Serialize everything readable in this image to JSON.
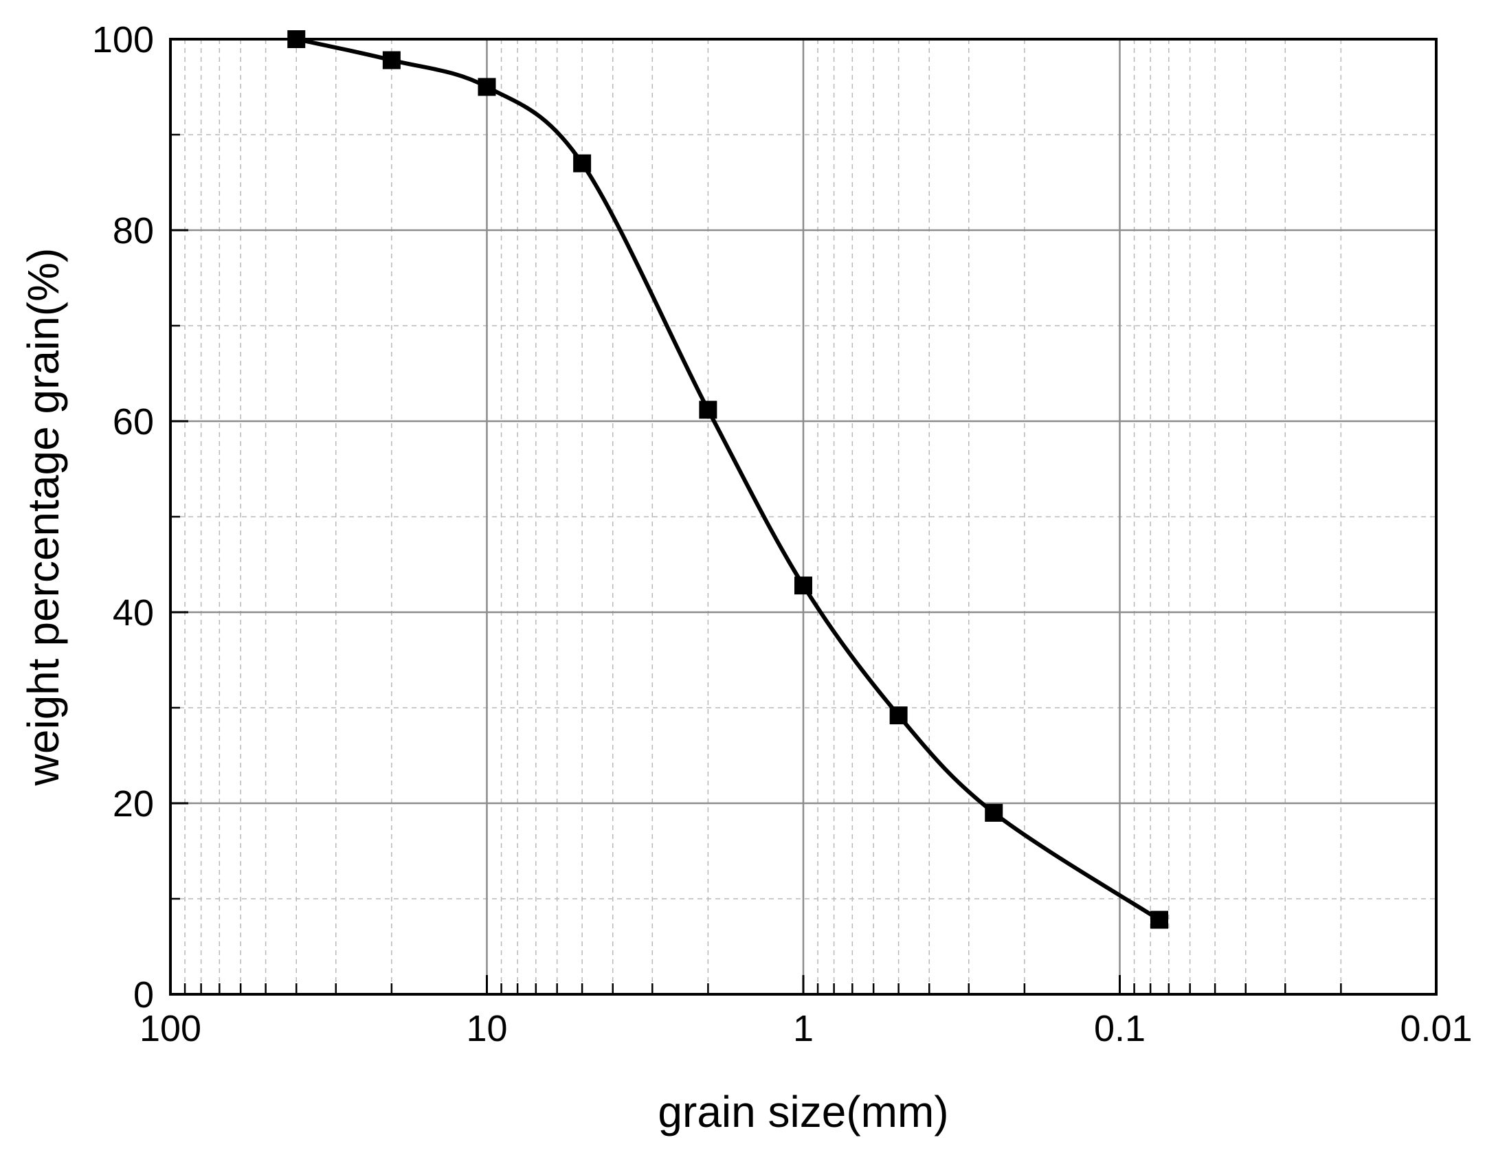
{
  "chart_data": {
    "type": "line",
    "title": "",
    "xlabel": "grain size(mm)",
    "ylabel": "weight percentage grain(%)",
    "x_scale": "log",
    "x_reversed": true,
    "xlim": [
      100,
      0.01
    ],
    "ylim": [
      0,
      100
    ],
    "x_ticks": [
      {
        "value": 100,
        "label": "100"
      },
      {
        "value": 10,
        "label": "10"
      },
      {
        "value": 1,
        "label": "1"
      },
      {
        "value": 0.1,
        "label": "0.1"
      },
      {
        "value": 0.01,
        "label": "0.01"
      }
    ],
    "y_ticks": [
      {
        "value": 0,
        "label": "0"
      },
      {
        "value": 20,
        "label": "20"
      },
      {
        "value": 40,
        "label": "40"
      },
      {
        "value": 60,
        "label": "60"
      },
      {
        "value": 80,
        "label": "80"
      },
      {
        "value": 100,
        "label": "100"
      }
    ],
    "grid": true,
    "legend": "none",
    "series": [
      {
        "x": [
          40,
          20,
          10,
          5,
          2,
          1,
          0.5,
          0.25,
          0.075
        ],
        "y": [
          100,
          97.8,
          95,
          87,
          61.2,
          42.8,
          29.2,
          19,
          7.8
        ],
        "color": "#000000",
        "marker": "square",
        "line": "smooth"
      }
    ]
  }
}
